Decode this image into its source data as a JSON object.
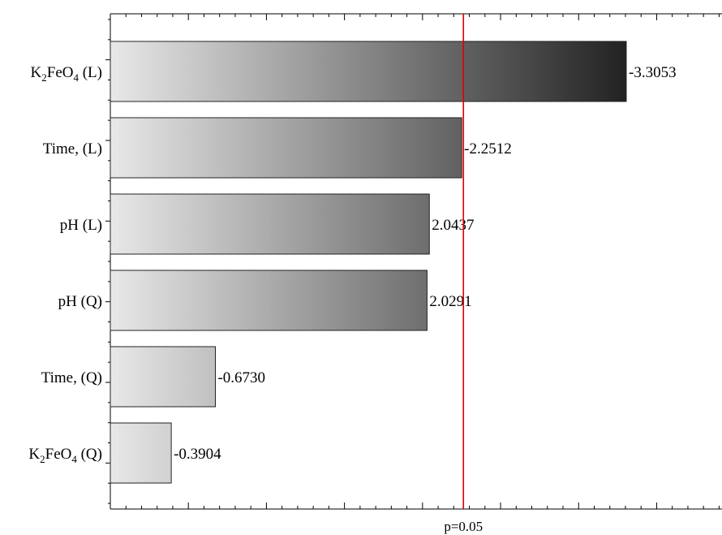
{
  "chart_data": {
    "type": "bar",
    "orientation": "horizontal",
    "title": "",
    "xlabel": "",
    "ylabel": "",
    "categories": [
      "K2FeO4 (L)",
      "Time, (L)",
      "pH (L)",
      "pH (Q)",
      "Time, (Q)",
      "K2FeO4 (Q)"
    ],
    "category_labels": [
      {
        "parts": [
          {
            "t": "K"
          },
          {
            "t": "2",
            "sub": true
          },
          {
            "t": "FeO"
          },
          {
            "t": "4",
            "sub": true
          },
          {
            "t": " (L)"
          }
        ]
      },
      {
        "parts": [
          {
            "t": "Time, (L)"
          }
        ]
      },
      {
        "parts": [
          {
            "t": "pH (L)"
          }
        ]
      },
      {
        "parts": [
          {
            "t": "pH (Q)"
          }
        ]
      },
      {
        "parts": [
          {
            "t": "Time, (Q)"
          }
        ]
      },
      {
        "parts": [
          {
            "t": "K"
          },
          {
            "t": "2",
            "sub": true
          },
          {
            "t": "FeO"
          },
          {
            "t": "4",
            "sub": true
          },
          {
            "t": " (Q)"
          }
        ]
      }
    ],
    "values": [
      3.3053,
      2.2512,
      2.0437,
      2.0291,
      0.673,
      0.3904
    ],
    "value_labels": [
      "-3.3053",
      "-2.2512",
      "2.0437",
      "2.0291",
      "-0.6730",
      "-0.3904"
    ],
    "xlim": [
      0,
      3.9
    ],
    "x_minor_tick_step": 0.1,
    "x_major_tick_step": 0.5,
    "reference_line": {
      "value": 2.262,
      "label": "p=0.05",
      "color": "#e00000"
    },
    "bar_gradient": [
      "#e8e8e8",
      "#222222"
    ],
    "grid": false
  }
}
